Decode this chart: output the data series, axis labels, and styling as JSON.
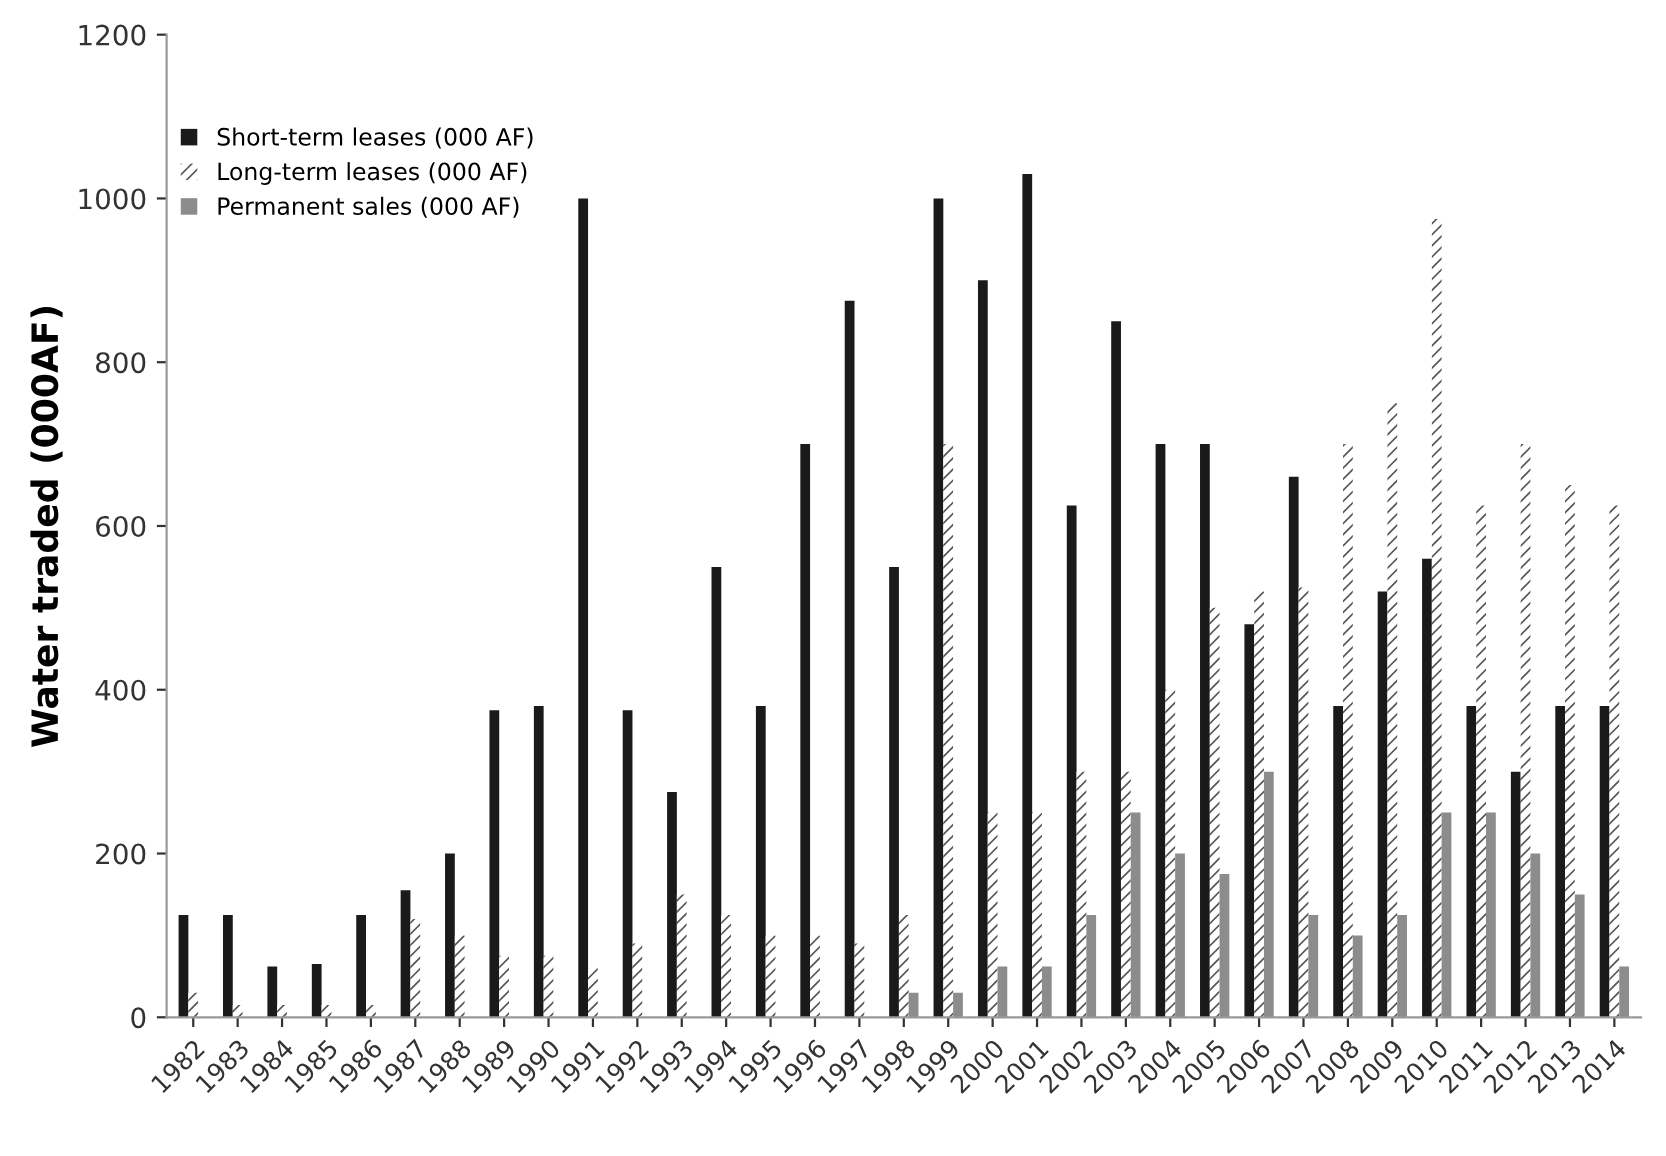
{
  "chart_data": {
    "type": "bar",
    "ylabel": "Water traded (000AF)",
    "categories": [
      "1982",
      "1983",
      "1984",
      "1985",
      "1986",
      "1987",
      "1988",
      "1989",
      "1990",
      "1991",
      "1992",
      "1993",
      "1994",
      "1995",
      "1996",
      "1997",
      "1998",
      "1999",
      "2000",
      "2001",
      "2002",
      "2003",
      "2004",
      "2005",
      "2006",
      "2007",
      "2008",
      "2009",
      "2010",
      "2011",
      "2012",
      "2013",
      "2014"
    ],
    "series": [
      {
        "name": "Short-term leases (000 AF)",
        "color": "#1a1a1a",
        "values": [
          125,
          125,
          62,
          65,
          125,
          155,
          200,
          375,
          380,
          1000,
          375,
          275,
          550,
          380,
          700,
          875,
          550,
          1000,
          900,
          1030,
          625,
          850,
          700,
          700,
          480,
          660,
          380,
          520,
          560,
          380,
          300,
          380,
          380
        ]
      },
      {
        "name": "Long-term leases (000 AF)",
        "color": "#555555",
        "values": [
          30,
          15,
          15,
          15,
          15,
          120,
          100,
          75,
          75,
          60,
          90,
          150,
          125,
          100,
          100,
          90,
          125,
          700,
          250,
          250,
          300,
          300,
          400,
          500,
          520,
          525,
          700,
          750,
          975,
          625,
          700,
          650,
          625
        ]
      },
      {
        "name": "Permanent sales (000 AF)",
        "color": "#8c8c8c",
        "values": [
          null,
          null,
          null,
          null,
          null,
          null,
          null,
          null,
          null,
          null,
          null,
          null,
          null,
          null,
          null,
          null,
          30,
          30,
          62,
          62,
          125,
          250,
          200,
          175,
          300,
          125,
          100,
          125,
          250,
          250,
          200,
          150,
          62
        ]
      }
    ],
    "ylim": [
      0,
      1200
    ],
    "yticks": [
      0,
      200,
      400,
      600,
      800,
      1000,
      1200
    ],
    "grid": false,
    "legend": "top left"
  }
}
